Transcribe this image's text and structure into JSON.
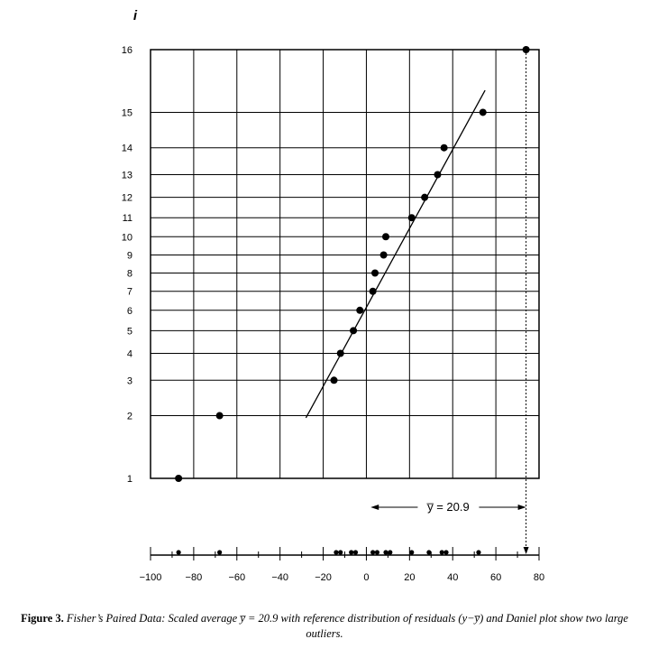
{
  "chart_data": {
    "type": "scatter",
    "ylabel": "i",
    "xlabel": "",
    "xlim": [
      -100,
      80
    ],
    "ylim": [
      1,
      16
    ],
    "x_ticks": [
      -100,
      -80,
      -60,
      -40,
      -20,
      0,
      20,
      40,
      60,
      80
    ],
    "x_tick_labels": [
      "−100",
      "−80",
      "−60",
      "−40",
      "−20",
      "0",
      "20",
      "40",
      "60",
      "80"
    ],
    "y_ticks": [
      1,
      2,
      3,
      4,
      5,
      6,
      7,
      8,
      9,
      10,
      11,
      12,
      13,
      14,
      15,
      16
    ],
    "y_scale": "normal-probability",
    "grid": true,
    "points": [
      {
        "i": 1,
        "x": -87
      },
      {
        "i": 2,
        "x": -68
      },
      {
        "i": 3,
        "x": -15
      },
      {
        "i": 4,
        "x": -12
      },
      {
        "i": 5,
        "x": -6
      },
      {
        "i": 6,
        "x": -3
      },
      {
        "i": 7,
        "x": 3
      },
      {
        "i": 8,
        "x": 4
      },
      {
        "i": 9,
        "x": 8
      },
      {
        "i": 10,
        "x": 9
      },
      {
        "i": 11,
        "x": 21
      },
      {
        "i": 12,
        "x": 27
      },
      {
        "i": 13,
        "x": 33
      },
      {
        "i": 14,
        "x": 36
      },
      {
        "i": 15,
        "x": 54
      },
      {
        "i": 16,
        "x": 74
      }
    ],
    "fit_line": {
      "x": [
        -28,
        55
      ],
      "i": [
        1.95,
        15.45
      ]
    },
    "dot_plot_x": [
      -87,
      -68,
      -14,
      -12,
      -7,
      -5,
      3,
      5,
      9,
      11,
      21,
      29,
      35,
      37,
      52
    ],
    "reference_marker_x": 74,
    "annotation": "y̅ = 20.9",
    "annotation_range_x": [
      2,
      74
    ]
  },
  "caption": {
    "lead": "Figure 3.",
    "body": " Fisher’s Paired Data: Scaled average  y̅ = 20.9  with reference distribution of residuals (y−y̅) and Daniel plot show two large outliers."
  },
  "colors": {
    "ink": "#000000",
    "background": "#ffffff"
  }
}
